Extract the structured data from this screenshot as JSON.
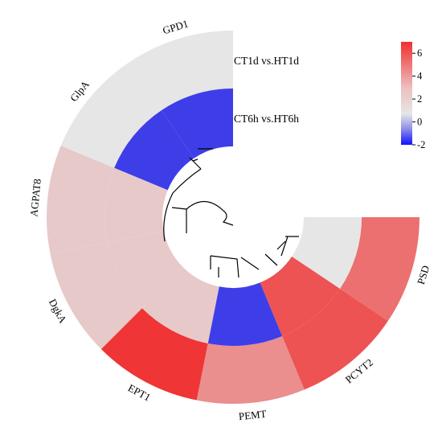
{
  "chart_data": {
    "type": "heatmap",
    "layout": "circular",
    "rows": [
      {
        "name": "CT1d vs.HT1d",
        "ring": "outer"
      },
      {
        "name": "CT6h vs.HT6h",
        "ring": "inner"
      }
    ],
    "genes": [
      "GPD1",
      "GlpA",
      "AGPAT8",
      "DgkA",
      "EPT1",
      "PEMT",
      "PCYT2",
      "PSD"
    ],
    "values": {
      "GPD1": {
        "CT1d vs.HT1d": 0.0,
        "CT6h vs.HT6h": -1.6
      },
      "GlpA": {
        "CT1d vs.HT1d": 0.0,
        "CT6h vs.HT6h": -1.6
      },
      "AGPAT8": {
        "CT1d vs.HT1d": 1.0,
        "CT6h vs.HT6h": 1.0
      },
      "DgkA": {
        "CT1d vs.HT1d": 1.0,
        "CT6h vs.HT6h": 1.0
      },
      "EPT1": {
        "CT1d vs.HT1d": 6.0,
        "CT6h vs.HT6h": 1.0
      },
      "PEMT": {
        "CT1d vs.HT1d": 3.0,
        "CT6h vs.HT6h": -1.6
      },
      "PCYT2": {
        "CT1d vs.HT1d": 5.0,
        "CT6h vs.HT6h": 5.0
      },
      "PSD": {
        "CT1d vs.HT1d": 4.0,
        "CT6h vs.HT6h": 0.0
      }
    },
    "colorbar": {
      "ticks": [
        "6",
        "4",
        "2",
        "0",
        "-2"
      ],
      "range": [
        -2,
        7
      ],
      "colors": {
        "low": "#1414e8",
        "mid": "#e6e6e6",
        "high": "#f01818"
      }
    },
    "dendrogram": true
  }
}
